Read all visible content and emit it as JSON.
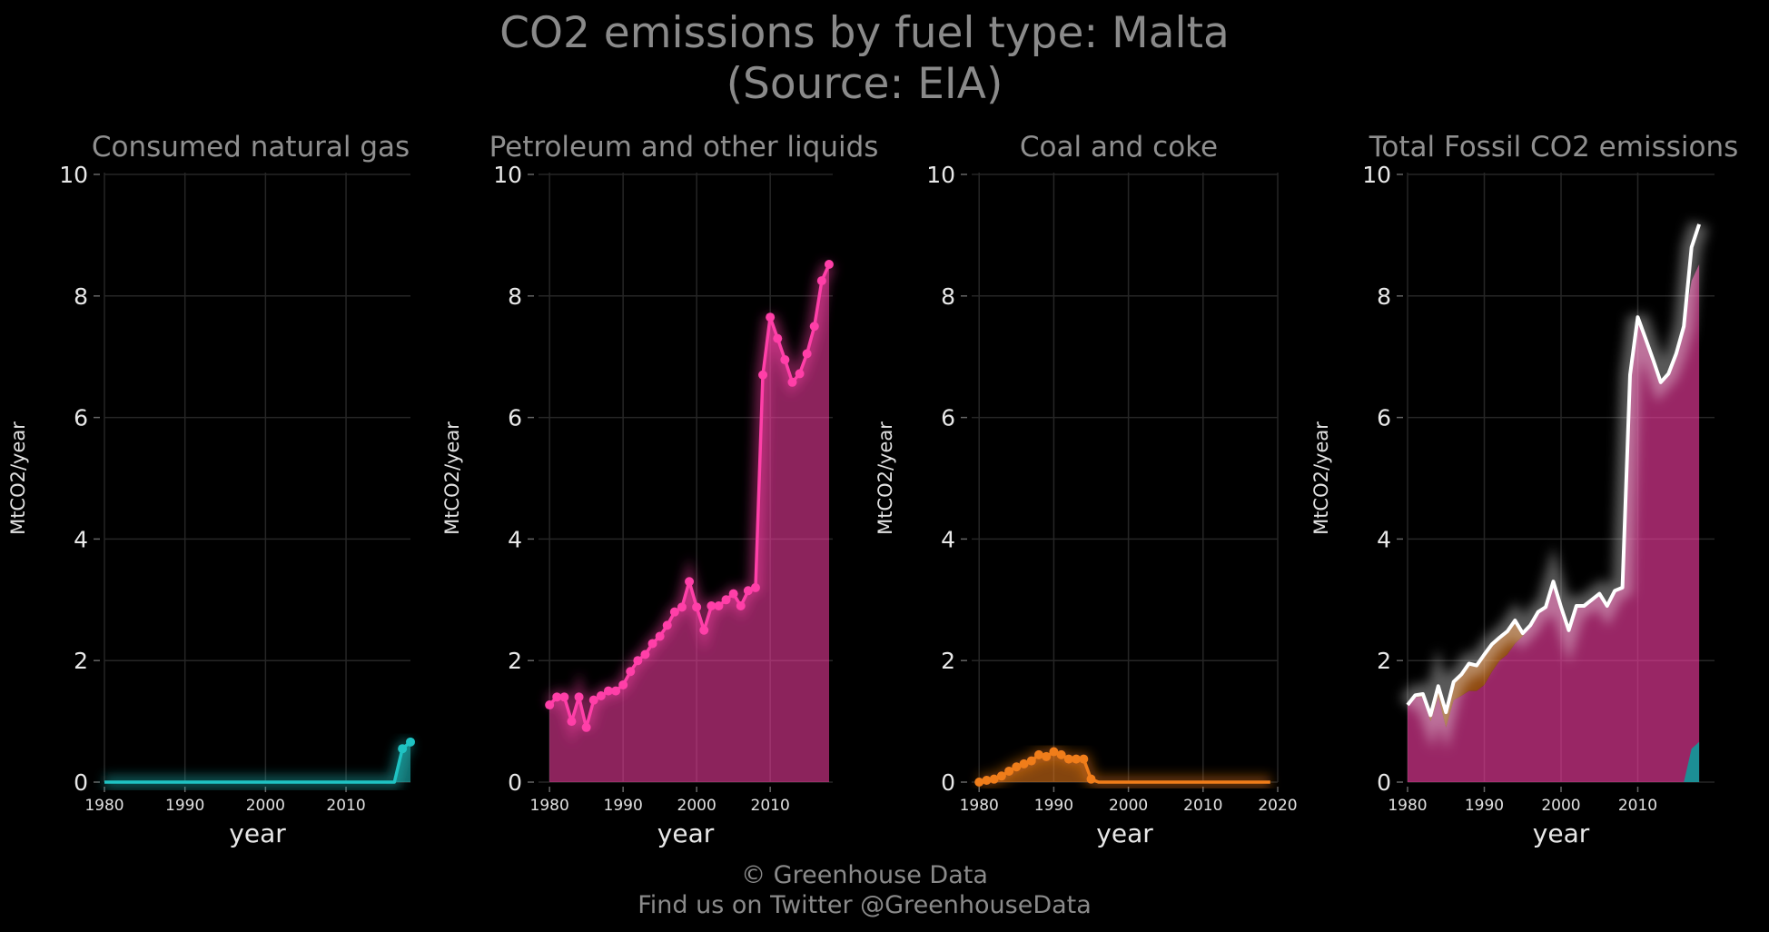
{
  "title_line1": "CO2 emissions by fuel type: Malta",
  "title_line2": "(Source: EIA)",
  "caption_line1": "© Greenhouse Data",
  "caption_line2": "Find us on Twitter @GreenhouseData",
  "chart_data": [
    {
      "type": "area",
      "title": "Consumed natural gas",
      "xlabel": "year",
      "ylabel": "MtCO2/year",
      "xlim": [
        1980,
        2018
      ],
      "ylim": [
        0,
        10
      ],
      "xticks": [
        1980,
        1990,
        2000,
        2010
      ],
      "yticks": [
        0,
        2,
        4,
        6,
        8,
        10
      ],
      "grid": true,
      "color": "#1fc3c3",
      "x": [
        1980,
        1981,
        1982,
        1983,
        1984,
        1985,
        1986,
        1987,
        1988,
        1989,
        1990,
        1991,
        1992,
        1993,
        1994,
        1995,
        1996,
        1997,
        1998,
        1999,
        2000,
        2001,
        2002,
        2003,
        2004,
        2005,
        2006,
        2007,
        2008,
        2009,
        2010,
        2011,
        2012,
        2013,
        2014,
        2015,
        2016,
        2017,
        2018
      ],
      "y": [
        0,
        0,
        0,
        0,
        0,
        0,
        0,
        0,
        0,
        0,
        0,
        0,
        0,
        0,
        0,
        0,
        0,
        0,
        0,
        0,
        0,
        0,
        0,
        0,
        0,
        0,
        0,
        0,
        0,
        0,
        0,
        0,
        0,
        0,
        0,
        0,
        0,
        0.55,
        0.66
      ],
      "markers_from": 2017
    },
    {
      "type": "area",
      "title": "Petroleum and other liquids",
      "xlabel": "year",
      "ylabel": "MtCO2/year",
      "xlim": [
        1978.5,
        2018.5
      ],
      "ylim": [
        0,
        10
      ],
      "xticks": [
        1980,
        1990,
        2000,
        2010
      ],
      "yticks": [
        0,
        2,
        4,
        6,
        8,
        10
      ],
      "grid": true,
      "color": "#ff3fa8",
      "x": [
        1980,
        1981,
        1982,
        1983,
        1984,
        1985,
        1986,
        1987,
        1988,
        1989,
        1990,
        1991,
        1992,
        1993,
        1994,
        1995,
        1996,
        1997,
        1998,
        1999,
        2000,
        2001,
        2002,
        2003,
        2004,
        2005,
        2006,
        2007,
        2008,
        2009,
        2010,
        2011,
        2012,
        2013,
        2014,
        2015,
        2016,
        2017,
        2018
      ],
      "y": [
        1.27,
        1.4,
        1.4,
        1.0,
        1.4,
        0.9,
        1.35,
        1.42,
        1.5,
        1.5,
        1.6,
        1.82,
        2.0,
        2.1,
        2.28,
        2.4,
        2.58,
        2.8,
        2.88,
        3.3,
        2.88,
        2.5,
        2.9,
        2.9,
        3.0,
        3.1,
        2.9,
        3.15,
        3.2,
        6.7,
        7.65,
        7.3,
        6.95,
        6.58,
        6.72,
        7.05,
        7.5,
        8.25,
        8.52
      ],
      "markers_from": 1980
    },
    {
      "type": "area",
      "title": "Coal and coke",
      "xlabel": "year",
      "ylabel": "MtCO2/year",
      "xlim": [
        1979,
        2020
      ],
      "ylim": [
        0,
        10
      ],
      "xticks": [
        1980,
        1990,
        2000,
        2010,
        2020
      ],
      "yticks": [
        0,
        2,
        4,
        6,
        8,
        10
      ],
      "grid": true,
      "color": "#f07d1a",
      "x": [
        1980,
        1981,
        1982,
        1983,
        1984,
        1985,
        1986,
        1987,
        1988,
        1989,
        1990,
        1991,
        1992,
        1993,
        1994,
        1995,
        1996,
        1997,
        1998,
        1999,
        2000,
        2001,
        2002,
        2003,
        2004,
        2005,
        2006,
        2007,
        2008,
        2009,
        2010,
        2011,
        2012,
        2013,
        2014,
        2015,
        2016,
        2017,
        2018,
        2019
      ],
      "y": [
        0.0,
        0.03,
        0.05,
        0.1,
        0.18,
        0.25,
        0.3,
        0.35,
        0.45,
        0.42,
        0.5,
        0.45,
        0.38,
        0.38,
        0.38,
        0.05,
        0,
        0,
        0,
        0,
        0,
        0,
        0,
        0,
        0,
        0,
        0,
        0,
        0,
        0,
        0,
        0,
        0,
        0,
        0,
        0,
        0,
        0,
        0,
        0
      ],
      "markers_until": 1995
    },
    {
      "type": "area",
      "title": "Total Fossil CO2 emissions",
      "xlabel": "year",
      "ylabel": "MtCO2/year",
      "xlim": [
        1980,
        2020
      ],
      "ylim": [
        0,
        10
      ],
      "xticks": [
        1980,
        1990,
        2000,
        2010
      ],
      "yticks": [
        0,
        2,
        4,
        6,
        8,
        10
      ],
      "grid": true,
      "line_color": "#ffffff",
      "stack_colors": [
        "#1fc3c3",
        "#ff3fa8",
        "#f07d1a"
      ],
      "x": [
        1980,
        1981,
        1982,
        1983,
        1984,
        1985,
        1986,
        1987,
        1988,
        1989,
        1990,
        1991,
        1992,
        1993,
        1994,
        1995,
        1996,
        1997,
        1998,
        1999,
        2000,
        2001,
        2002,
        2003,
        2004,
        2005,
        2006,
        2007,
        2008,
        2009,
        2010,
        2011,
        2012,
        2013,
        2014,
        2015,
        2016,
        2017,
        2018
      ],
      "y": [
        1.27,
        1.43,
        1.45,
        1.1,
        1.58,
        1.15,
        1.65,
        1.77,
        1.95,
        1.92,
        2.1,
        2.27,
        2.38,
        2.48,
        2.66,
        2.45,
        2.58,
        2.8,
        2.88,
        3.3,
        2.88,
        2.5,
        2.9,
        2.9,
        3.0,
        3.1,
        2.9,
        3.15,
        3.2,
        6.7,
        7.65,
        7.3,
        6.95,
        6.58,
        6.72,
        7.05,
        7.5,
        8.8,
        9.18
      ]
    }
  ]
}
